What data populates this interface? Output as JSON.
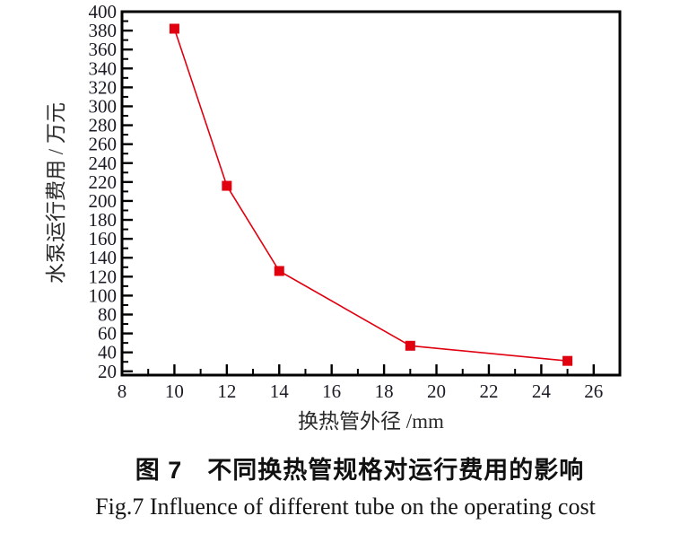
{
  "figure": {
    "caption_zh": "图 7　不同换热管规格对运行费用的影响",
    "caption_en": "Fig.7  Influence of different tube on the operating cost"
  },
  "chart_data": {
    "type": "line",
    "title": "",
    "xlabel": "换热管外径 /mm",
    "ylabel": "水泵运行费用 / 万元",
    "x": [
      10,
      12,
      14,
      19,
      25
    ],
    "y": [
      382,
      216,
      126,
      47,
      31
    ],
    "xlim": [
      8,
      27
    ],
    "ylim": [
      16,
      400
    ],
    "x_major_ticks": [
      8,
      10,
      12,
      14,
      16,
      18,
      20,
      22,
      24,
      26
    ],
    "x_minor_ticks": [
      9,
      11,
      13,
      15,
      17,
      19,
      21,
      23,
      25
    ],
    "y_major_ticks": [
      20,
      40,
      60,
      80,
      100,
      120,
      140,
      160,
      180,
      200,
      220,
      240,
      260,
      280,
      300,
      320,
      340,
      360,
      380,
      400
    ],
    "y_minor_ticks": [
      30,
      50,
      70,
      90,
      110,
      130,
      150,
      170,
      190,
      210,
      230,
      250,
      270,
      290,
      310,
      330,
      350,
      370,
      390
    ],
    "grid": false,
    "legend": "none",
    "marker": "square",
    "colors": {
      "line": "#e1000f",
      "marker": "#e1000f",
      "axis": "#000000",
      "tick_text": "#1b1b26",
      "axis_title_text": "#2a2a2a"
    }
  }
}
